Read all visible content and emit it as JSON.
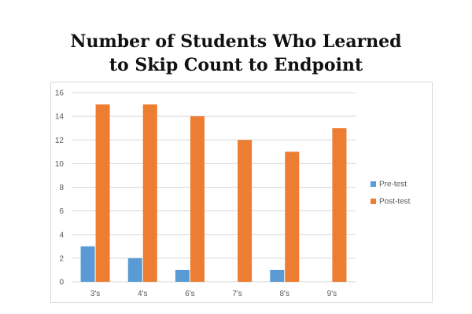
{
  "chart_data": {
    "type": "bar",
    "title_lines": [
      "Number of Students Who Learned",
      "to Skip Count to Endpoint"
    ],
    "categories": [
      "3's",
      "4's",
      "6's",
      "7's",
      "8's",
      "9's"
    ],
    "series": [
      {
        "name": "Pre-test",
        "color": "#5b9bd5",
        "values": [
          3,
          2,
          1,
          0,
          1,
          0
        ]
      },
      {
        "name": "Post-test",
        "color": "#ed7d31",
        "values": [
          15,
          15,
          14,
          12,
          11,
          13
        ]
      }
    ],
    "yticks": [
      "0",
      "2",
      "4",
      "6",
      "8",
      "10",
      "12",
      "14",
      "16"
    ],
    "ylim": [
      0,
      16
    ],
    "grid": true,
    "legend_position": "right"
  }
}
